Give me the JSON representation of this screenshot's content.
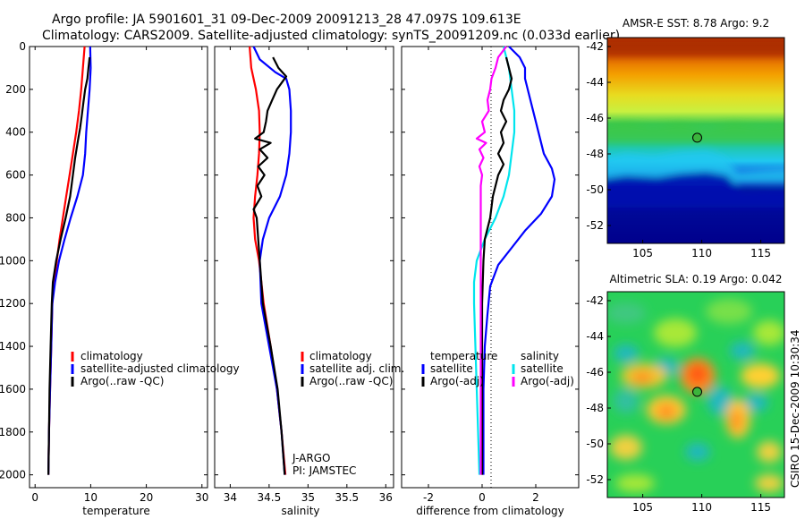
{
  "header": {
    "line1": "Argo profile: JA 5901601_31 09-Dec-2009 20091213_28 47.097S 109.613E",
    "line2": "Climatology: CARS2009. Satellite-adjusted climatology: synTS_20091209.nc (0.033d earlier)"
  },
  "side_label": "CSIRO 15-Dec-2009 10:30:34",
  "colors": {
    "red": "#ff0000",
    "blue": "#0000ff",
    "black": "#000000",
    "cyan": "#00e5ee",
    "magenta": "#ff00ff"
  },
  "chart_data": [
    {
      "type": "line",
      "xlabel": "temperature",
      "xlim": [
        -1,
        31
      ],
      "ylim": [
        2060,
        0
      ],
      "xticks": [
        "0",
        "10",
        "20",
        "30"
      ],
      "yticks": [
        "0",
        "200",
        "400",
        "600",
        "800",
        "1000",
        "1200",
        "1400",
        "1600",
        "1800",
        "2000"
      ],
      "legend": [
        "climatology",
        "satellite-adjusted climatology",
        "Argo(..raw -QC)"
      ],
      "series": [
        {
          "name": "climatology",
          "color": "red",
          "points": [
            [
              8.9,
              0
            ],
            [
              8.6,
              100
            ],
            [
              8.3,
              200
            ],
            [
              7.9,
              300
            ],
            [
              7.4,
              400
            ],
            [
              6.8,
              500
            ],
            [
              6.2,
              600
            ],
            [
              5.6,
              700
            ],
            [
              5.0,
              800
            ],
            [
              4.4,
              900
            ],
            [
              3.9,
              1000
            ],
            [
              3.4,
              1100
            ],
            [
              3.1,
              1200
            ],
            [
              2.9,
              1400
            ],
            [
              2.7,
              1600
            ],
            [
              2.5,
              1800
            ],
            [
              2.4,
              2000
            ]
          ]
        },
        {
          "name": "satellite-adjusted climatology",
          "color": "blue",
          "points": [
            [
              9.9,
              0
            ],
            [
              10.0,
              100
            ],
            [
              9.8,
              200
            ],
            [
              9.5,
              300
            ],
            [
              9.2,
              400
            ],
            [
              9.0,
              500
            ],
            [
              8.6,
              600
            ],
            [
              7.6,
              700
            ],
            [
              6.4,
              800
            ],
            [
              5.3,
              900
            ],
            [
              4.3,
              1000
            ],
            [
              3.6,
              1100
            ],
            [
              3.1,
              1200
            ],
            [
              2.9,
              1400
            ],
            [
              2.7,
              1600
            ],
            [
              2.5,
              1800
            ],
            [
              2.4,
              2000
            ]
          ]
        },
        {
          "name": "Argo(..raw -QC)",
          "color": "black",
          "points": [
            [
              9.8,
              50
            ],
            [
              9.6,
              100
            ],
            [
              9.4,
              150
            ],
            [
              9.0,
              200
            ],
            [
              8.7,
              260
            ],
            [
              8.4,
              320
            ],
            [
              8.1,
              380
            ],
            [
              7.7,
              440
            ],
            [
              7.2,
              520
            ],
            [
              6.8,
              600
            ],
            [
              6.3,
              700
            ],
            [
              5.5,
              800
            ],
            [
              4.6,
              900
            ],
            [
              3.8,
              1000
            ],
            [
              3.2,
              1100
            ],
            [
              3.0,
              1200
            ],
            [
              2.8,
              1400
            ],
            [
              2.6,
              1600
            ],
            [
              2.5,
              1800
            ],
            [
              2.4,
              2000
            ]
          ]
        }
      ]
    },
    {
      "type": "line",
      "xlabel": "salinity",
      "xlim": [
        33.8,
        36.1
      ],
      "ylim": [
        2060,
        0
      ],
      "xticks": [
        "34",
        "34.5",
        "35",
        "35.5",
        "36"
      ],
      "legend": [
        "climatology",
        "satellite adj. clim.",
        "Argo(..raw -QC)"
      ],
      "annotations": [
        "J-ARGO",
        "PI: JAMSTEC"
      ],
      "series": [
        {
          "name": "climatology",
          "color": "red",
          "points": [
            [
              34.25,
              0
            ],
            [
              34.27,
              100
            ],
            [
              34.33,
              200
            ],
            [
              34.37,
              300
            ],
            [
              34.38,
              400
            ],
            [
              34.37,
              500
            ],
            [
              34.35,
              600
            ],
            [
              34.32,
              700
            ],
            [
              34.3,
              800
            ],
            [
              34.32,
              900
            ],
            [
              34.37,
              1000
            ],
            [
              34.43,
              1200
            ],
            [
              34.52,
              1400
            ],
            [
              34.6,
              1600
            ],
            [
              34.66,
              1800
            ],
            [
              34.71,
              2000
            ]
          ]
        },
        {
          "name": "satellite adj. clim.",
          "color": "blue",
          "points": [
            [
              34.3,
              0
            ],
            [
              34.38,
              60
            ],
            [
              34.58,
              120
            ],
            [
              34.72,
              150
            ],
            [
              34.76,
              200
            ],
            [
              34.78,
              300
            ],
            [
              34.78,
              400
            ],
            [
              34.76,
              500
            ],
            [
              34.72,
              600
            ],
            [
              34.64,
              700
            ],
            [
              34.5,
              800
            ],
            [
              34.42,
              900
            ],
            [
              34.38,
              1000
            ],
            [
              34.4,
              1200
            ],
            [
              34.5,
              1400
            ],
            [
              34.6,
              1600
            ],
            [
              34.66,
              1800
            ],
            [
              34.7,
              2000
            ]
          ]
        },
        {
          "name": "Argo(..raw -QC)",
          "color": "black",
          "points": [
            [
              34.55,
              50
            ],
            [
              34.62,
              100
            ],
            [
              34.72,
              140
            ],
            [
              34.66,
              170
            ],
            [
              34.6,
              200
            ],
            [
              34.54,
              250
            ],
            [
              34.48,
              300
            ],
            [
              34.46,
              350
            ],
            [
              34.43,
              400
            ],
            [
              34.32,
              430
            ],
            [
              34.52,
              450
            ],
            [
              34.38,
              480
            ],
            [
              34.48,
              520
            ],
            [
              34.36,
              560
            ],
            [
              34.44,
              600
            ],
            [
              34.35,
              650
            ],
            [
              34.4,
              700
            ],
            [
              34.3,
              760
            ],
            [
              34.34,
              800
            ],
            [
              34.36,
              900
            ],
            [
              34.38,
              1000
            ],
            [
              34.42,
              1200
            ],
            [
              34.52,
              1400
            ],
            [
              34.61,
              1600
            ],
            [
              34.66,
              1800
            ],
            [
              34.7,
              2000
            ]
          ]
        }
      ]
    },
    {
      "type": "line",
      "xlabel": "difference from climatology",
      "xlim": [
        -3,
        3.6
      ],
      "ylim": [
        2060,
        0
      ],
      "xticks": [
        "-2",
        "0",
        "2"
      ],
      "legend": [
        "temperature",
        "salinity",
        "satellite",
        "satellite",
        "Argo(-adj)",
        "Argo(-adj)"
      ],
      "series": [
        {
          "name": "temperature satellite",
          "color": "blue",
          "points": [
            [
              1.0,
              0
            ],
            [
              1.4,
              50
            ],
            [
              1.6,
              100
            ],
            [
              1.6,
              150
            ],
            [
              1.7,
              200
            ],
            [
              1.9,
              300
            ],
            [
              2.1,
              400
            ],
            [
              2.3,
              500
            ],
            [
              2.6,
              570
            ],
            [
              2.7,
              620
            ],
            [
              2.6,
              700
            ],
            [
              2.2,
              780
            ],
            [
              1.6,
              860
            ],
            [
              1.1,
              940
            ],
            [
              0.6,
              1020
            ],
            [
              0.3,
              1120
            ],
            [
              0.2,
              1250
            ],
            [
              0.1,
              1400
            ],
            [
              0.05,
              1600
            ],
            [
              0.05,
              2000
            ]
          ]
        },
        {
          "name": "salinity satellite",
          "color": "cyan",
          "points": [
            [
              0.8,
              0
            ],
            [
              1.0,
              100
            ],
            [
              1.1,
              200
            ],
            [
              1.2,
              300
            ],
            [
              1.2,
              400
            ],
            [
              1.1,
              500
            ],
            [
              1.0,
              600
            ],
            [
              0.8,
              700
            ],
            [
              0.5,
              800
            ],
            [
              0.1,
              900
            ],
            [
              -0.2,
              1000
            ],
            [
              -0.3,
              1100
            ],
            [
              -0.3,
              1200
            ],
            [
              -0.25,
              1400
            ],
            [
              -0.2,
              1600
            ],
            [
              -0.15,
              1800
            ],
            [
              -0.1,
              2000
            ]
          ]
        },
        {
          "name": "temperature Argo(-adj)",
          "color": "black",
          "points": [
            [
              0.9,
              50
            ],
            [
              1.0,
              100
            ],
            [
              1.1,
              150
            ],
            [
              1.0,
              200
            ],
            [
              0.8,
              250
            ],
            [
              0.7,
              300
            ],
            [
              0.9,
              350
            ],
            [
              0.7,
              400
            ],
            [
              0.8,
              450
            ],
            [
              0.6,
              500
            ],
            [
              0.8,
              550
            ],
            [
              0.6,
              600
            ],
            [
              0.5,
              650
            ],
            [
              0.4,
              700
            ],
            [
              0.3,
              800
            ],
            [
              0.1,
              900
            ],
            [
              0.05,
              1000
            ],
            [
              0.0,
              1200
            ],
            [
              0.0,
              1500
            ],
            [
              0.0,
              1800
            ],
            [
              0.0,
              2000
            ]
          ]
        },
        {
          "name": "salinity Argo(-adj)",
          "color": "magenta",
          "points": [
            [
              0.9,
              0
            ],
            [
              0.6,
              50
            ],
            [
              0.5,
              100
            ],
            [
              0.35,
              150
            ],
            [
              0.3,
              200
            ],
            [
              0.2,
              250
            ],
            [
              0.25,
              300
            ],
            [
              0.0,
              350
            ],
            [
              0.1,
              400
            ],
            [
              -0.2,
              430
            ],
            [
              0.15,
              450
            ],
            [
              -0.1,
              480
            ],
            [
              0.05,
              520
            ],
            [
              -0.1,
              560
            ],
            [
              0.0,
              600
            ],
            [
              -0.05,
              650
            ],
            [
              -0.05,
              700
            ],
            [
              -0.05,
              800
            ],
            [
              -0.05,
              900
            ],
            [
              -0.05,
              1000
            ],
            [
              -0.05,
              1200
            ],
            [
              -0.05,
              1500
            ],
            [
              -0.05,
              1800
            ],
            [
              -0.05,
              2000
            ]
          ]
        }
      ]
    },
    {
      "type": "heatmap",
      "title": "AMSR-E SST: 8.78 Argo: 9.2",
      "xlim": [
        102,
        117
      ],
      "ylim": [
        -53,
        -41.5
      ],
      "xticks": [
        "105",
        "110",
        "115"
      ],
      "yticks": [
        "-42",
        "-44",
        "-46",
        "-48",
        "-50",
        "-52"
      ],
      "marker": [
        109.613,
        -47.097
      ]
    },
    {
      "type": "heatmap",
      "title": "Altimetric SLA: 0.19 Argo: 0.042",
      "xlim": [
        102,
        117
      ],
      "ylim": [
        -53,
        -41.5
      ],
      "xticks": [
        "105",
        "110",
        "115"
      ],
      "yticks": [
        "-42",
        "-44",
        "-46",
        "-48",
        "-50",
        "-52"
      ],
      "marker": [
        109.613,
        -47.097
      ]
    }
  ]
}
